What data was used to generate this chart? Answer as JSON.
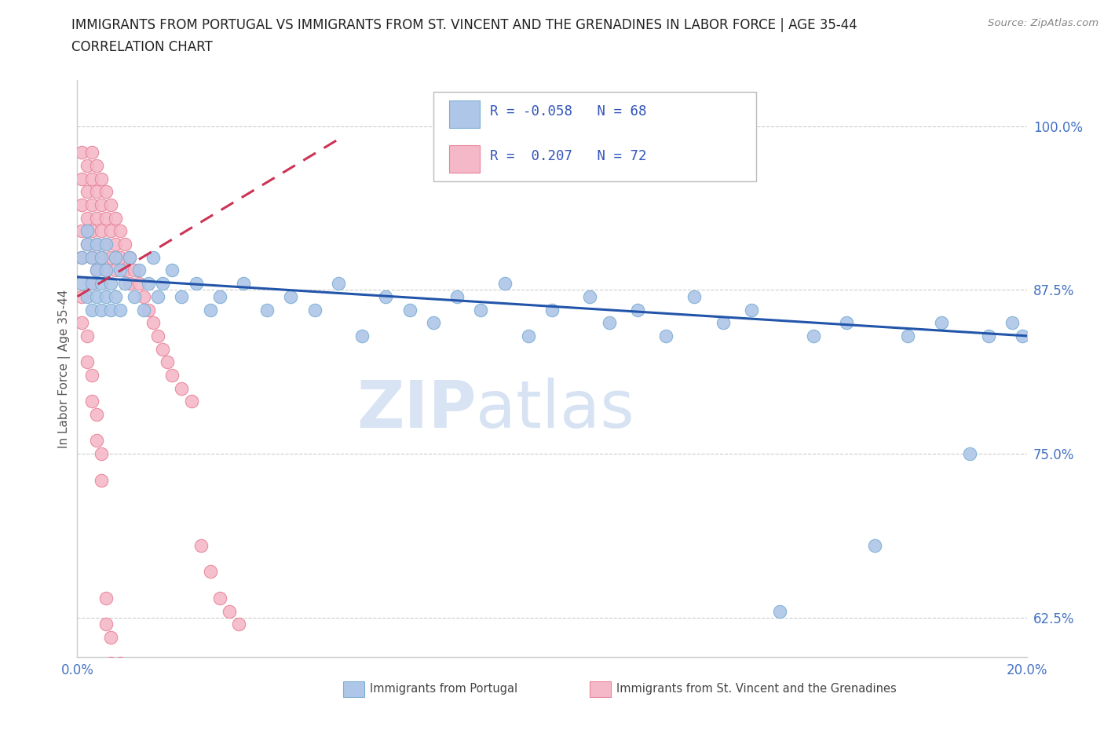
{
  "title_line1": "IMMIGRANTS FROM PORTUGAL VS IMMIGRANTS FROM ST. VINCENT AND THE GRENADINES IN LABOR FORCE | AGE 35-44",
  "title_line2": "CORRELATION CHART",
  "source": "Source: ZipAtlas.com",
  "ylabel": "In Labor Force | Age 35-44",
  "xlim": [
    0.0,
    0.2
  ],
  "ylim": [
    0.595,
    1.035
  ],
  "xtick_vals": [
    0.0,
    0.04,
    0.08,
    0.12,
    0.16,
    0.2
  ],
  "ytick_vals": [
    0.625,
    0.75,
    0.875,
    1.0
  ],
  "portugal_color": "#aec6e8",
  "portugal_edge": "#7bafd4",
  "stv_color": "#f4b8c8",
  "stv_edge": "#e8849a",
  "trend_portugal_color": "#2255aa",
  "trend_stv_color": "#cc3355",
  "R_portugal": -0.058,
  "N_portugal": 68,
  "R_stv": 0.207,
  "N_stv": 72,
  "background_color": "#ffffff",
  "port_x": [
    0.001,
    0.001,
    0.002,
    0.002,
    0.002,
    0.003,
    0.003,
    0.003,
    0.004,
    0.004,
    0.004,
    0.005,
    0.005,
    0.005,
    0.006,
    0.006,
    0.006,
    0.007,
    0.007,
    0.008,
    0.008,
    0.009,
    0.009,
    0.01,
    0.011,
    0.012,
    0.013,
    0.014,
    0.015,
    0.016,
    0.017,
    0.018,
    0.02,
    0.022,
    0.025,
    0.028,
    0.03,
    0.035,
    0.04,
    0.045,
    0.05,
    0.055,
    0.06,
    0.065,
    0.07,
    0.075,
    0.08,
    0.085,
    0.09,
    0.095,
    0.1,
    0.108,
    0.112,
    0.118,
    0.124,
    0.13,
    0.136,
    0.142,
    0.148,
    0.155,
    0.162,
    0.168,
    0.175,
    0.182,
    0.188,
    0.192,
    0.197,
    0.199
  ],
  "port_y": [
    0.9,
    0.88,
    0.91,
    0.87,
    0.92,
    0.88,
    0.9,
    0.86,
    0.89,
    0.87,
    0.91,
    0.88,
    0.86,
    0.9,
    0.89,
    0.87,
    0.91,
    0.88,
    0.86,
    0.9,
    0.87,
    0.89,
    0.86,
    0.88,
    0.9,
    0.87,
    0.89,
    0.86,
    0.88,
    0.9,
    0.87,
    0.88,
    0.89,
    0.87,
    0.88,
    0.86,
    0.87,
    0.88,
    0.86,
    0.87,
    0.86,
    0.88,
    0.84,
    0.87,
    0.86,
    0.85,
    0.87,
    0.86,
    0.88,
    0.84,
    0.86,
    0.87,
    0.85,
    0.86,
    0.84,
    0.87,
    0.85,
    0.86,
    0.63,
    0.84,
    0.85,
    0.68,
    0.84,
    0.85,
    0.75,
    0.84,
    0.85,
    0.84
  ],
  "stv_x": [
    0.001,
    0.001,
    0.001,
    0.001,
    0.001,
    0.002,
    0.002,
    0.002,
    0.002,
    0.003,
    0.003,
    0.003,
    0.003,
    0.003,
    0.003,
    0.004,
    0.004,
    0.004,
    0.004,
    0.004,
    0.005,
    0.005,
    0.005,
    0.005,
    0.006,
    0.006,
    0.006,
    0.006,
    0.007,
    0.007,
    0.007,
    0.008,
    0.008,
    0.008,
    0.009,
    0.009,
    0.01,
    0.01,
    0.011,
    0.011,
    0.012,
    0.013,
    0.014,
    0.015,
    0.016,
    0.017,
    0.018,
    0.019,
    0.02,
    0.022,
    0.024,
    0.026,
    0.028,
    0.03,
    0.032,
    0.034,
    0.001,
    0.001,
    0.002,
    0.002,
    0.003,
    0.003,
    0.004,
    0.004,
    0.005,
    0.005,
    0.006,
    0.006,
    0.007,
    0.007,
    0.008,
    0.009
  ],
  "stv_y": [
    0.98,
    0.96,
    0.94,
    0.92,
    0.9,
    0.97,
    0.95,
    0.93,
    0.91,
    0.98,
    0.96,
    0.94,
    0.92,
    0.9,
    0.88,
    0.97,
    0.95,
    0.93,
    0.91,
    0.89,
    0.96,
    0.94,
    0.92,
    0.9,
    0.95,
    0.93,
    0.91,
    0.89,
    0.94,
    0.92,
    0.9,
    0.93,
    0.91,
    0.89,
    0.92,
    0.9,
    0.91,
    0.89,
    0.9,
    0.88,
    0.89,
    0.88,
    0.87,
    0.86,
    0.85,
    0.84,
    0.83,
    0.82,
    0.81,
    0.8,
    0.79,
    0.68,
    0.66,
    0.64,
    0.63,
    0.62,
    0.87,
    0.85,
    0.84,
    0.82,
    0.81,
    0.79,
    0.78,
    0.76,
    0.75,
    0.73,
    0.64,
    0.62,
    0.61,
    0.59,
    0.58,
    0.59
  ]
}
